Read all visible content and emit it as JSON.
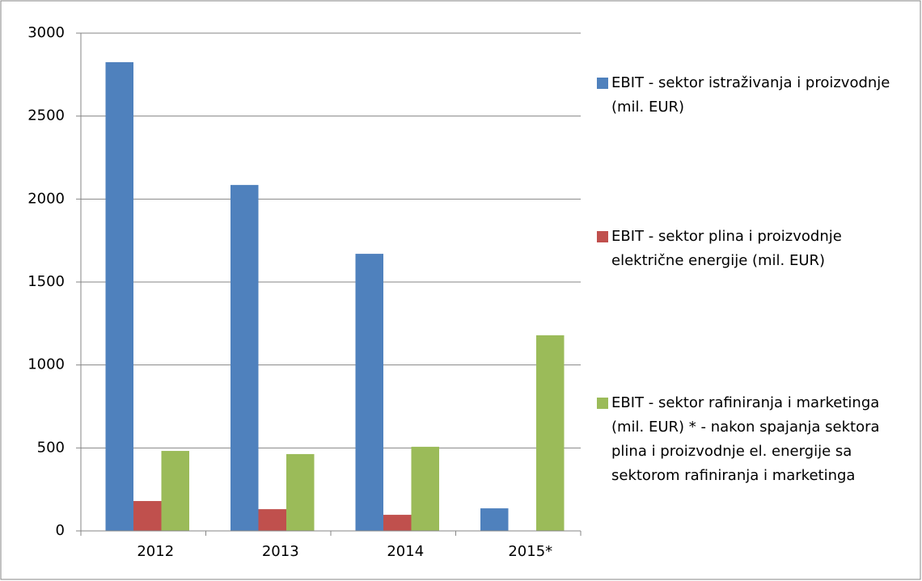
{
  "chart_data": {
    "type": "bar",
    "categories": [
      "2012",
      "2013",
      "2014",
      "2015*"
    ],
    "series": [
      {
        "name": "EBIT - sektor istraživanja i proizvodnje (mil. EUR)",
        "color": "#4f81bd",
        "values": [
          2825,
          2085,
          1670,
          136
        ]
      },
      {
        "name": "EBIT - sektor plina i proizvodnje električne energije (mil. EUR)",
        "color": "#c0504d",
        "values": [
          180,
          131,
          97,
          null
        ]
      },
      {
        "name": "EBIT - sektor rafiniranja i marketinga (mil. EUR) * - nakon spajanja sektora plina i proizvodnje el. energije sa sektorom rafiniranja i marketinga",
        "color": "#9bbb59",
        "values": [
          482,
          463,
          507,
          1179
        ]
      }
    ],
    "ylim": [
      0,
      3000
    ],
    "yticks": [
      0,
      500,
      1000,
      1500,
      2000,
      2500,
      3000
    ],
    "grid": true,
    "legend": "right"
  }
}
